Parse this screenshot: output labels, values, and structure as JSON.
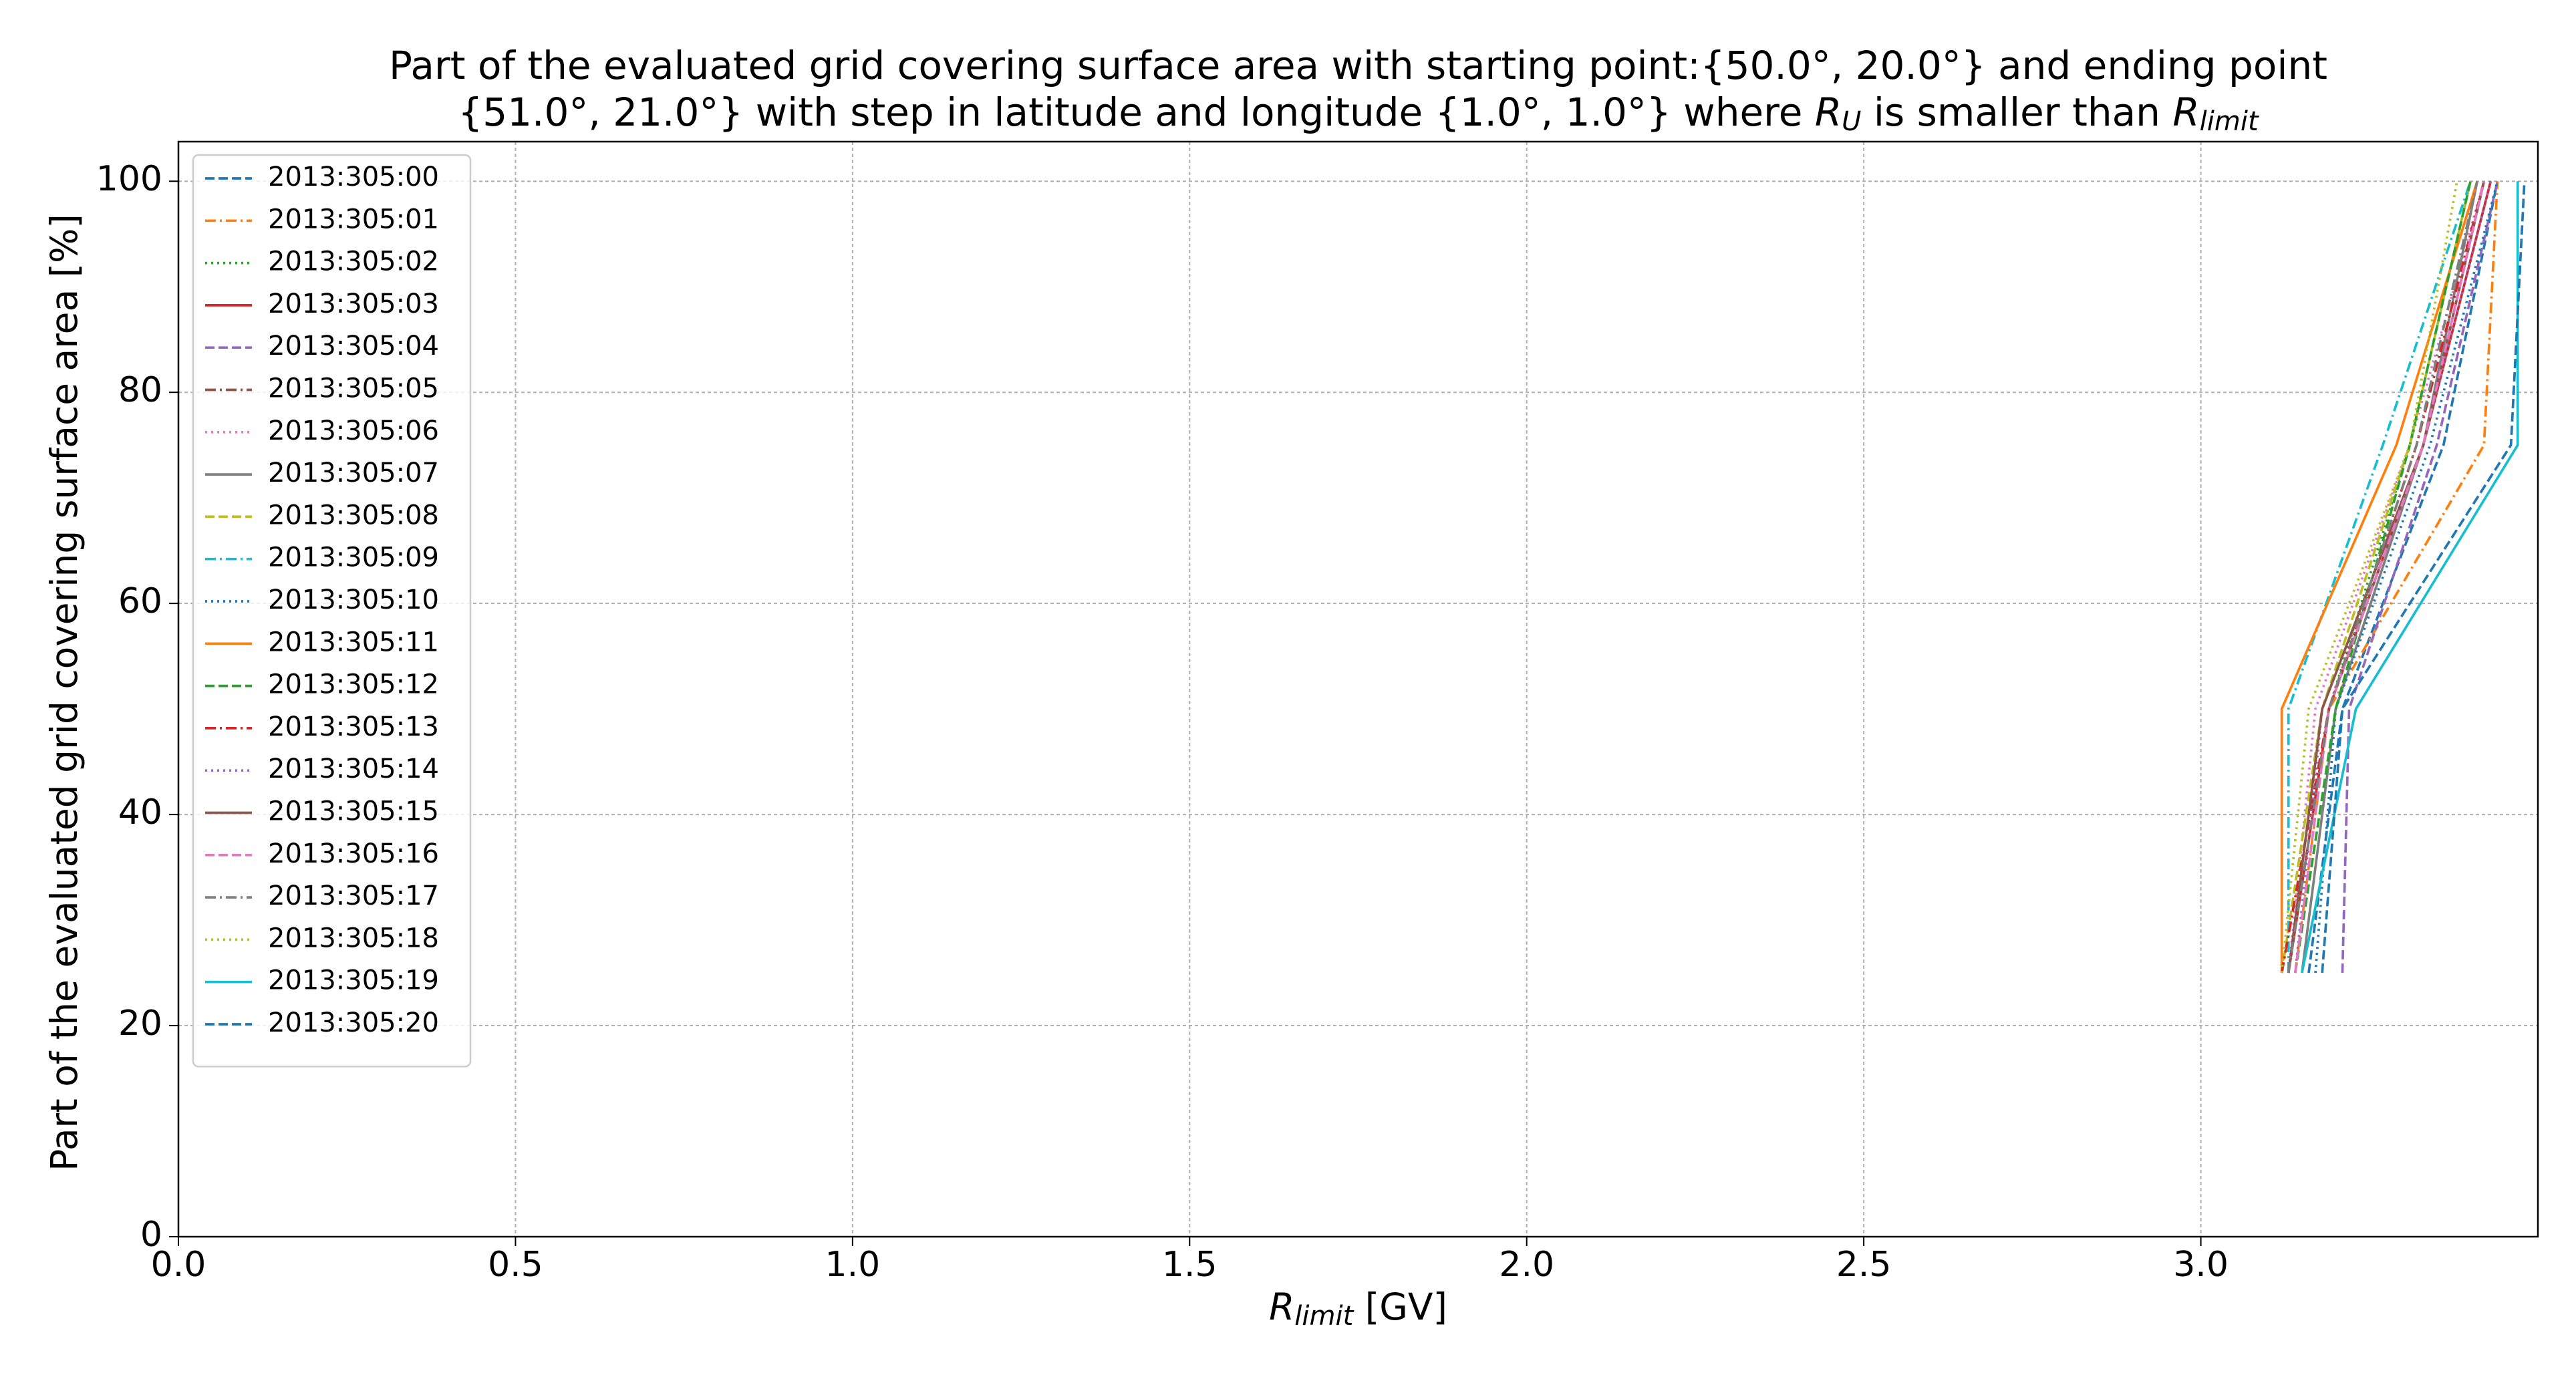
{
  "chart_data": {
    "type": "line",
    "title": [
      "Part of the evaluated grid covering surface area with starting point:{50.0°, 20.0°} and ending point",
      "{51.0°, 21.0°} with step in latitude and longitude {1.0°, 1.0°} where ",
      "R",
      "U",
      " is smaller than ",
      "R",
      "limit"
    ],
    "x_label": [
      "R",
      "limit",
      " [GV]"
    ],
    "y_label": "Part of the evaluated grid covering surface area  [%]",
    "xlim": [
      0,
      3.5
    ],
    "ylim": [
      0,
      103.75
    ],
    "xticks": [
      {
        "value": 0,
        "label": "0.0"
      },
      0.5,
      {
        "value": 1,
        "label": "1.0"
      },
      1.5,
      {
        "value": 2,
        "label": "2.0"
      },
      2.5,
      {
        "value": 3,
        "label": "3.0"
      }
    ],
    "yticks": [
      0,
      20,
      40,
      60,
      80,
      100
    ],
    "grid": true,
    "legend": "upper left",
    "series": [
      {
        "name": "2013:305:00",
        "color": "#1f77b4",
        "style": "dashed",
        "x": [
          3.16,
          3.21,
          3.36,
          3.44
        ],
        "values": [
          25,
          50,
          75,
          100
        ]
      },
      {
        "name": "2013:305:01",
        "color": "#ff7f0e",
        "style": "dashdot",
        "x": [
          3.14,
          3.19,
          3.42,
          3.44
        ],
        "values": [
          25,
          50,
          75,
          100
        ]
      },
      {
        "name": "2013:305:02",
        "color": "#2ca02c",
        "style": "dotted",
        "x": [
          3.13,
          3.19,
          3.31,
          3.4
        ],
        "values": [
          25,
          50,
          75,
          100
        ]
      },
      {
        "name": "2013:305:03",
        "color": "#d62728",
        "style": "solid",
        "x": [
          3.13,
          3.19,
          3.33,
          3.43
        ],
        "values": [
          25,
          50,
          75,
          100
        ]
      },
      {
        "name": "2013:305:04",
        "color": "#9467bd",
        "style": "dashed",
        "x": [
          3.21,
          3.22,
          3.35,
          3.44
        ],
        "values": [
          25,
          50,
          75,
          100
        ]
      },
      {
        "name": "2013:305:05",
        "color": "#8c564b",
        "style": "dashdot",
        "x": [
          3.12,
          3.19,
          3.33,
          3.42
        ],
        "values": [
          25,
          50,
          75,
          100
        ]
      },
      {
        "name": "2013:305:06",
        "color": "#e377c2",
        "style": "dotted",
        "x": [
          3.13,
          3.17,
          3.31,
          3.42
        ],
        "values": [
          25,
          50,
          75,
          100
        ]
      },
      {
        "name": "2013:305:07",
        "color": "#7f7f7f",
        "style": "solid",
        "x": [
          3.15,
          3.2,
          3.33,
          3.41
        ],
        "values": [
          25,
          50,
          75,
          100
        ]
      },
      {
        "name": "2013:305:08",
        "color": "#bcbd22",
        "style": "dashed",
        "x": [
          3.12,
          3.18,
          3.31,
          3.4
        ],
        "values": [
          25,
          50,
          75,
          100
        ]
      },
      {
        "name": "2013:305:09",
        "color": "#17becf",
        "style": "dashdot",
        "x": [
          3.13,
          3.13,
          3.27,
          3.4
        ],
        "values": [
          25,
          50,
          75,
          100
        ]
      },
      {
        "name": "2013:305:10",
        "color": "#1f77b4",
        "style": "dotted",
        "x": [
          3.17,
          3.2,
          3.34,
          3.44
        ],
        "values": [
          25,
          50,
          75,
          100
        ]
      },
      {
        "name": "2013:305:11",
        "color": "#ff7f0e",
        "style": "solid",
        "x": [
          3.12,
          3.12,
          3.29,
          3.41
        ],
        "values": [
          25,
          50,
          75,
          100
        ]
      },
      {
        "name": "2013:305:12",
        "color": "#2ca02c",
        "style": "dashed",
        "x": [
          3.14,
          3.2,
          3.31,
          3.4
        ],
        "values": [
          25,
          50,
          75,
          100
        ]
      },
      {
        "name": "2013:305:13",
        "color": "#d62728",
        "style": "dashdot",
        "x": [
          3.12,
          3.19,
          3.32,
          3.42
        ],
        "values": [
          25,
          50,
          75,
          100
        ]
      },
      {
        "name": "2013:305:14",
        "color": "#9467bd",
        "style": "dotted",
        "x": [
          3.14,
          3.18,
          3.33,
          3.43
        ],
        "values": [
          25,
          50,
          75,
          100
        ]
      },
      {
        "name": "2013:305:15",
        "color": "#8c564b",
        "style": "solid",
        "x": [
          3.13,
          3.18,
          3.33,
          3.42
        ],
        "values": [
          25,
          50,
          75,
          100
        ]
      },
      {
        "name": "2013:305:16",
        "color": "#e377c2",
        "style": "dashed",
        "x": [
          3.14,
          3.19,
          3.33,
          3.42
        ],
        "values": [
          25,
          50,
          75,
          100
        ]
      },
      {
        "name": "2013:305:17",
        "color": "#7f7f7f",
        "style": "dashdot",
        "x": [
          3.13,
          3.19,
          3.32,
          3.41
        ],
        "values": [
          25,
          50,
          75,
          100
        ]
      },
      {
        "name": "2013:305:18",
        "color": "#bcbd22",
        "style": "dotted",
        "x": [
          3.12,
          3.16,
          3.31,
          3.38
        ],
        "values": [
          25,
          50,
          75,
          100
        ]
      },
      {
        "name": "2013:305:19",
        "color": "#17becf",
        "style": "solid",
        "x": [
          3.15,
          3.23,
          3.47,
          3.47
        ],
        "values": [
          25,
          50,
          75,
          100
        ]
      },
      {
        "name": "2013:305:20",
        "color": "#1f77b4",
        "style": "dashed",
        "x": [
          3.18,
          3.21,
          3.46,
          3.48
        ],
        "values": [
          25,
          50,
          75,
          100
        ]
      }
    ]
  }
}
